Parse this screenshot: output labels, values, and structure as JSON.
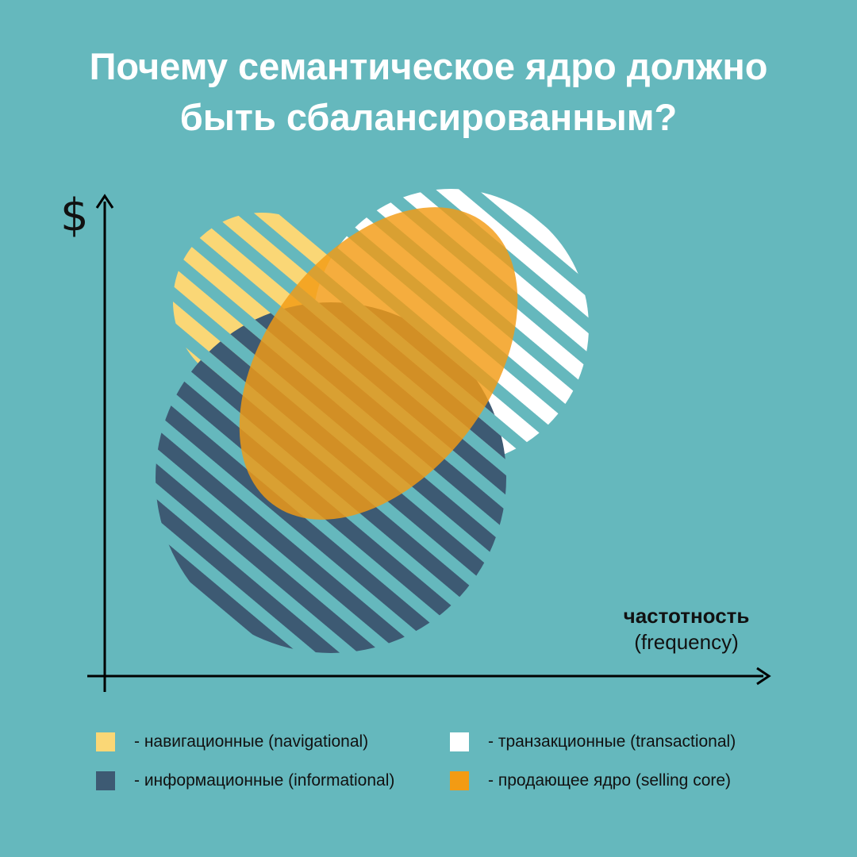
{
  "title": {
    "line1": "Почему семантическое ядро должно",
    "line2": "быть сбалансированным?"
  },
  "axes": {
    "y_symbol": "$",
    "x_label_main": "частотность",
    "x_label_sub": "(frequency)"
  },
  "colors": {
    "background": "#65b8bd",
    "navigational": "#fad776",
    "transactional": "#ffffff",
    "informational": "#3d5a73",
    "selling_core": "#f39b13"
  },
  "legend": [
    {
      "label": "- навигационные (navigational)",
      "color": "#fad776"
    },
    {
      "label": "- транзакционные (transactional)",
      "color": "#ffffff"
    },
    {
      "label": "- информационные (informational)",
      "color": "#3d5a73"
    },
    {
      "label": "- продающее ядро (selling core)",
      "color": "#f39b13"
    }
  ]
}
